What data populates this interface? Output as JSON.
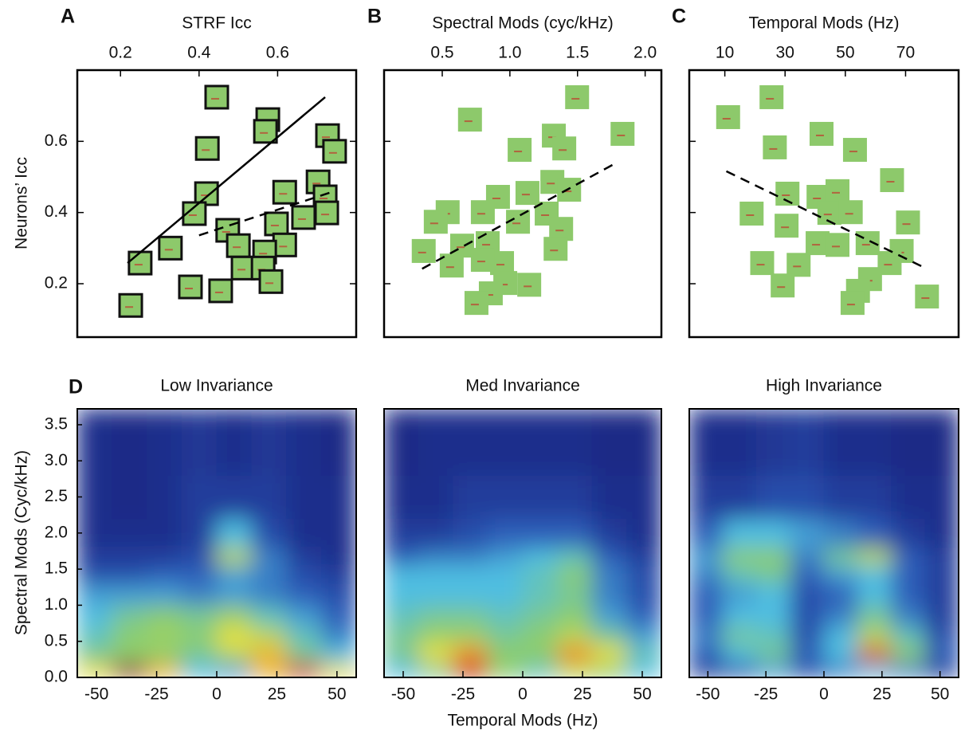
{
  "chart_data": [
    {
      "type": "scatter",
      "panel_label": "A",
      "x_label": "STRF Icc",
      "y_label": "Neurons’ Icc",
      "framed": true,
      "xlim": [
        0.09,
        0.8
      ],
      "ylim": [
        0.05,
        0.8
      ],
      "xticks": [
        0.2,
        0.4,
        0.6
      ],
      "yticks": [
        0.2,
        0.4,
        0.6
      ],
      "x": [
        0.445,
        0.575,
        0.569,
        0.421,
        0.727,
        0.745,
        0.419,
        0.388,
        0.618,
        0.703,
        0.721,
        0.725,
        0.666,
        0.473,
        0.597,
        0.5,
        0.618,
        0.567,
        0.512,
        0.563,
        0.583,
        0.378,
        0.455,
        0.25,
        0.327,
        0.226
      ],
      "y": [
        0.724,
        0.661,
        0.628,
        0.58,
        0.616,
        0.572,
        0.453,
        0.397,
        0.457,
        0.486,
        0.444,
        0.399,
        0.386,
        0.35,
        0.368,
        0.307,
        0.309,
        0.289,
        0.244,
        0.244,
        0.206,
        0.191,
        0.18,
        0.258,
        0.3,
        0.139
      ],
      "fit_lines": [
        {
          "style": "solid",
          "x": [
            0.218,
            0.721
          ],
          "y": [
            0.258,
            0.724
          ]
        },
        {
          "style": "dashed",
          "x": [
            0.4,
            0.745
          ],
          "y": [
            0.336,
            0.46
          ]
        }
      ]
    },
    {
      "type": "scatter",
      "panel_label": "B",
      "x_label": "Spectral Mods (cyc/kHz)",
      "framed": false,
      "xlim": [
        0.07,
        2.12
      ],
      "ylim": [
        0.05,
        0.8
      ],
      "xticks": [
        0.5,
        {
          "value": 1,
          "label": "1.0"
        },
        1.5,
        {
          "value": 2,
          "label": "2.0"
        }
      ],
      "x": [
        0.705,
        1.497,
        1.325,
        1.402,
        1.833,
        1.072,
        0.912,
        1.13,
        1.314,
        1.438,
        1.272,
        0.8,
        1.06,
        1.379,
        1.338,
        0.54,
        0.452,
        0.647,
        0.836,
        0.942,
        0.8,
        0.57,
        0.363,
        1.143,
        0.966,
        0.859,
        0.753
      ],
      "y": [
        0.661,
        0.724,
        0.616,
        0.58,
        0.621,
        0.576,
        0.444,
        0.455,
        0.486,
        0.464,
        0.397,
        0.401,
        0.374,
        0.354,
        0.298,
        0.401,
        0.374,
        0.307,
        0.314,
        0.258,
        0.267,
        0.251,
        0.292,
        0.197,
        0.202,
        0.173,
        0.146
      ],
      "fit_lines": [
        {
          "style": "dashed",
          "x": [
            0.351,
            1.779
          ],
          "y": [
            0.242,
            0.538
          ]
        }
      ]
    },
    {
      "type": "scatter",
      "panel_label": "C",
      "x_label": "Temporal Mods (Hz)",
      "framed": false,
      "xlim": [
        -1.8,
        87.6
      ],
      "ylim": [
        0.05,
        0.8
      ],
      "xticks": [
        10,
        30,
        50,
        70
      ],
      "x": [
        11.1,
        25.5,
        26.6,
        42.1,
        53.2,
        65.5,
        30.8,
        41.1,
        47.4,
        18.9,
        30.5,
        44.7,
        51.8,
        70.8,
        40.8,
        47.4,
        57.4,
        68.7,
        64.7,
        22.4,
        34.5,
        29.2,
        58.2,
        54.2,
        52.4,
        77.1
      ],
      "y": [
        0.668,
        0.724,
        0.583,
        0.621,
        0.576,
        0.491,
        0.453,
        0.444,
        0.46,
        0.397,
        0.363,
        0.399,
        0.401,
        0.372,
        0.314,
        0.309,
        0.314,
        0.292,
        0.258,
        0.258,
        0.253,
        0.195,
        0.213,
        0.18,
        0.146,
        0.164
      ],
      "fit_lines": [
        {
          "style": "dashed",
          "x": [
            10.5,
            75.8
          ],
          "y": [
            0.516,
            0.247
          ]
        }
      ]
    },
    {
      "type": "heatmap",
      "panel_label": "D",
      "title": "Low Invariance",
      "y_label": "Spectral Mods (Cyc/kHz)",
      "xlim": [
        -58,
        58
      ],
      "ylim": [
        0,
        3.72
      ],
      "xticks": [
        -50,
        -25,
        0,
        25,
        50
      ],
      "yticks": [
        {
          "value": 0,
          "label": "0.0"
        },
        0.5,
        {
          "value": 1,
          "label": "1.0"
        },
        1.5,
        {
          "value": 2,
          "label": "2.0"
        },
        2.5,
        {
          "value": 3,
          "label": "3.0"
        },
        3.5
      ],
      "xbins": [
        -58,
        -43.5,
        -29,
        -14.5,
        0,
        14.5,
        29,
        43.5,
        58
      ],
      "ybins": [
        0,
        0.2,
        0.45,
        0.7,
        1.0,
        1.3,
        1.55,
        1.8,
        2.2,
        2.8,
        3.72
      ],
      "z": [
        [
          0.7,
          0.95,
          0.75,
          0.45,
          0.4,
          0.75,
          0.9,
          0.7
        ],
        [
          0.55,
          0.6,
          0.6,
          0.55,
          0.65,
          0.75,
          0.55,
          0.45
        ],
        [
          0.5,
          0.6,
          0.62,
          0.6,
          0.7,
          0.65,
          0.5,
          0.35
        ],
        [
          0.45,
          0.55,
          0.6,
          0.55,
          0.62,
          0.5,
          0.4,
          0.3
        ],
        [
          0.4,
          0.4,
          0.4,
          0.35,
          0.4,
          0.35,
          0.3,
          0.25
        ],
        [
          0.25,
          0.25,
          0.3,
          0.3,
          0.4,
          0.35,
          0.25,
          0.2
        ],
        [
          0.2,
          0.2,
          0.2,
          0.25,
          0.65,
          0.35,
          0.2,
          0.15
        ],
        [
          0.15,
          0.15,
          0.15,
          0.2,
          0.45,
          0.25,
          0.15,
          0.15
        ],
        [
          0.15,
          0.12,
          0.15,
          0.2,
          0.2,
          0.2,
          0.15,
          0.15
        ],
        [
          0.15,
          0.12,
          0.15,
          0.18,
          0.15,
          0.18,
          0.15,
          0.12
        ]
      ]
    },
    {
      "type": "heatmap",
      "title": "Med Invariance",
      "x_label": "Temporal Mods (Hz)",
      "xlim": [
        -58,
        58
      ],
      "ylim": [
        0,
        3.72
      ],
      "xticks": [
        -50,
        -25,
        0,
        25,
        50
      ],
      "xbins": [
        -58,
        -43.5,
        -29,
        -14.5,
        0,
        14.5,
        29,
        43.5,
        58
      ],
      "ybins": [
        0,
        0.2,
        0.45,
        0.7,
        1.0,
        1.3,
        1.55,
        1.8,
        2.2,
        2.8,
        3.72
      ],
      "z": [
        [
          0.45,
          0.55,
          0.9,
          0.6,
          0.5,
          0.65,
          0.6,
          0.45
        ],
        [
          0.55,
          0.7,
          0.8,
          0.6,
          0.6,
          0.8,
          0.7,
          0.5
        ],
        [
          0.55,
          0.62,
          0.62,
          0.55,
          0.6,
          0.65,
          0.55,
          0.4
        ],
        [
          0.5,
          0.55,
          0.55,
          0.5,
          0.55,
          0.6,
          0.4,
          0.3
        ],
        [
          0.45,
          0.45,
          0.45,
          0.45,
          0.5,
          0.55,
          0.35,
          0.25
        ],
        [
          0.45,
          0.45,
          0.45,
          0.45,
          0.5,
          0.6,
          0.35,
          0.25
        ],
        [
          0.3,
          0.35,
          0.35,
          0.4,
          0.45,
          0.5,
          0.3,
          0.2
        ],
        [
          0.2,
          0.2,
          0.25,
          0.3,
          0.3,
          0.3,
          0.2,
          0.15
        ],
        [
          0.15,
          0.15,
          0.2,
          0.2,
          0.2,
          0.2,
          0.15,
          0.15
        ],
        [
          0.12,
          0.15,
          0.15,
          0.15,
          0.15,
          0.15,
          0.12,
          0.12
        ]
      ]
    },
    {
      "type": "heatmap",
      "title": "High Invariance",
      "xlim": [
        -58,
        58
      ],
      "ylim": [
        0,
        3.72
      ],
      "xticks": [
        -50,
        -25,
        0,
        25,
        50
      ],
      "xbins": [
        -58,
        -43.5,
        -29,
        -14.5,
        0,
        14.5,
        29,
        43.5,
        58
      ],
      "ybins": [
        0,
        0.2,
        0.45,
        0.7,
        1.0,
        1.3,
        1.55,
        1.8,
        2.2,
        2.8,
        3.72
      ],
      "z": [
        [
          0.2,
          0.25,
          0.4,
          0.25,
          0.35,
          0.45,
          0.35,
          0.2
        ],
        [
          0.3,
          0.45,
          0.55,
          0.3,
          0.45,
          0.85,
          0.6,
          0.3
        ],
        [
          0.35,
          0.55,
          0.5,
          0.25,
          0.45,
          0.65,
          0.5,
          0.25
        ],
        [
          0.3,
          0.45,
          0.45,
          0.25,
          0.35,
          0.55,
          0.35,
          0.2
        ],
        [
          0.3,
          0.4,
          0.45,
          0.25,
          0.3,
          0.45,
          0.3,
          0.2
        ],
        [
          0.35,
          0.5,
          0.55,
          0.3,
          0.4,
          0.45,
          0.3,
          0.2
        ],
        [
          0.4,
          0.6,
          0.6,
          0.35,
          0.55,
          0.65,
          0.3,
          0.2
        ],
        [
          0.3,
          0.45,
          0.45,
          0.4,
          0.35,
          0.3,
          0.2,
          0.15
        ],
        [
          0.2,
          0.2,
          0.25,
          0.25,
          0.2,
          0.2,
          0.15,
          0.15
        ],
        [
          0.15,
          0.15,
          0.18,
          0.2,
          0.15,
          0.15,
          0.12,
          0.12
        ]
      ]
    }
  ]
}
